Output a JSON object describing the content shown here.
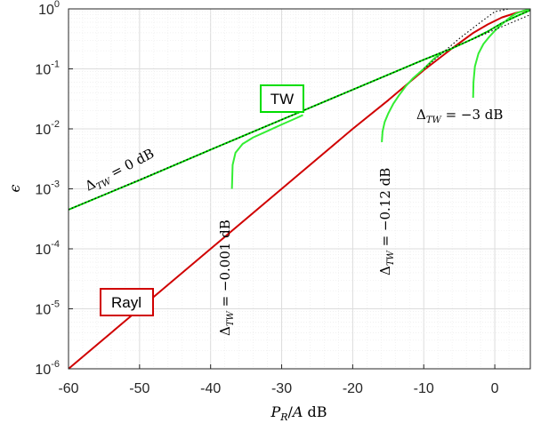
{
  "chart_data": {
    "type": "line",
    "title": "",
    "xlabel": "P_R/A dB",
    "ylabel": "ϵ",
    "xlim": [
      -60,
      5
    ],
    "ylim_exp": [
      -6,
      0
    ],
    "y_scale": "log",
    "grid": true,
    "x_ticks": [
      -60,
      -50,
      -40,
      -30,
      -20,
      -10,
      0
    ],
    "x_tick_labels": [
      "-60",
      "-50",
      "-40",
      "-30",
      "-20",
      "-10",
      "0"
    ],
    "y_ticks_exp": [
      -6,
      -5,
      -4,
      -3,
      -2,
      -1,
      0
    ],
    "y_tick_base": "10",
    "y_tick_exps": [
      "-6",
      "-5",
      "-4",
      "-3",
      "-2",
      "-1",
      "0"
    ],
    "series": [
      {
        "name": "Rayl",
        "color": "#d00000",
        "style": "solid",
        "x": [
          -60,
          -50,
          -40,
          -30,
          -20,
          -15,
          -10,
          -6,
          -3,
          -1,
          1,
          3,
          5
        ],
        "y": [
          1e-06,
          1e-05,
          0.0001,
          0.001,
          0.01,
          0.03,
          0.095,
          0.22,
          0.4,
          0.55,
          0.72,
          0.86,
          0.98
        ]
      },
      {
        "name": "TW",
        "color": "#00dd00",
        "style": "solid",
        "x": [
          -60,
          -50,
          -40,
          -30,
          -20,
          -15,
          -10,
          -6,
          -3,
          -1,
          1,
          3,
          5
        ],
        "y": [
          0.00045,
          0.0014,
          0.0045,
          0.0142,
          0.045,
          0.08,
          0.142,
          0.22,
          0.32,
          0.42,
          0.58,
          0.75,
          0.95
        ]
      },
      {
        "name": "Δ_TW = -0.001 dB",
        "color": "#33ee33",
        "style": "solid",
        "x": [
          -37,
          -36.9,
          -36.5,
          -35.5,
          -34,
          -32,
          -30,
          -28,
          -27
        ],
        "y": [
          0.001,
          0.0025,
          0.004,
          0.0056,
          0.0072,
          0.0092,
          0.0118,
          0.015,
          0.017
        ]
      },
      {
        "name": "Δ_TW = -0.12 dB",
        "color": "#33ee33",
        "style": "solid",
        "x": [
          -15.9,
          -15.8,
          -15.5,
          -15,
          -14.3,
          -13.5,
          -12.5,
          -11.5,
          -10,
          -8.5,
          -7
        ],
        "y": [
          0.006,
          0.009,
          0.013,
          0.018,
          0.026,
          0.036,
          0.052,
          0.07,
          0.1,
          0.15,
          0.2
        ]
      },
      {
        "name": "Δ_TW = -3 dB",
        "color": "#33ee33",
        "style": "solid",
        "x": [
          -3.05,
          -3,
          -2.8,
          -2.3,
          -1.6,
          -0.8,
          0,
          0.8,
          1.6,
          2.4,
          3,
          4,
          5
        ],
        "y": [
          0.033,
          0.06,
          0.11,
          0.18,
          0.26,
          0.34,
          0.43,
          0.53,
          0.64,
          0.76,
          0.84,
          0.93,
          0.98
        ]
      },
      {
        "name": "asymptote-1",
        "color": "#000000",
        "style": "dotted",
        "x": [
          -60,
          -40,
          -20,
          -10,
          -5,
          0,
          5
        ],
        "y": [
          0.00045,
          0.0045,
          0.045,
          0.142,
          0.25,
          0.45,
          0.8
        ]
      },
      {
        "name": "asymptote-2",
        "color": "#000000",
        "style": "dotted",
        "x": [
          -10,
          -5,
          -2,
          0,
          2
        ],
        "y": [
          0.1,
          0.32,
          0.6,
          0.9,
          1.0
        ]
      }
    ],
    "annotations": [
      {
        "text_base": "Δ",
        "text_sub": "TW",
        "text_rest": " = 0 dB"
      },
      {
        "text_base": "Δ",
        "text_sub": "TW",
        "text_rest": " = −0.001 dB"
      },
      {
        "text_base": "Δ",
        "text_sub": "TW",
        "text_rest": " = −0.12 dB"
      },
      {
        "text_base": "Δ",
        "text_sub": "TW",
        "text_rest": " = −3 dB"
      }
    ],
    "legend_boxes": [
      {
        "label": "TW",
        "color": "#00dd00"
      },
      {
        "label": "Rayl",
        "color": "#d00000"
      }
    ]
  }
}
